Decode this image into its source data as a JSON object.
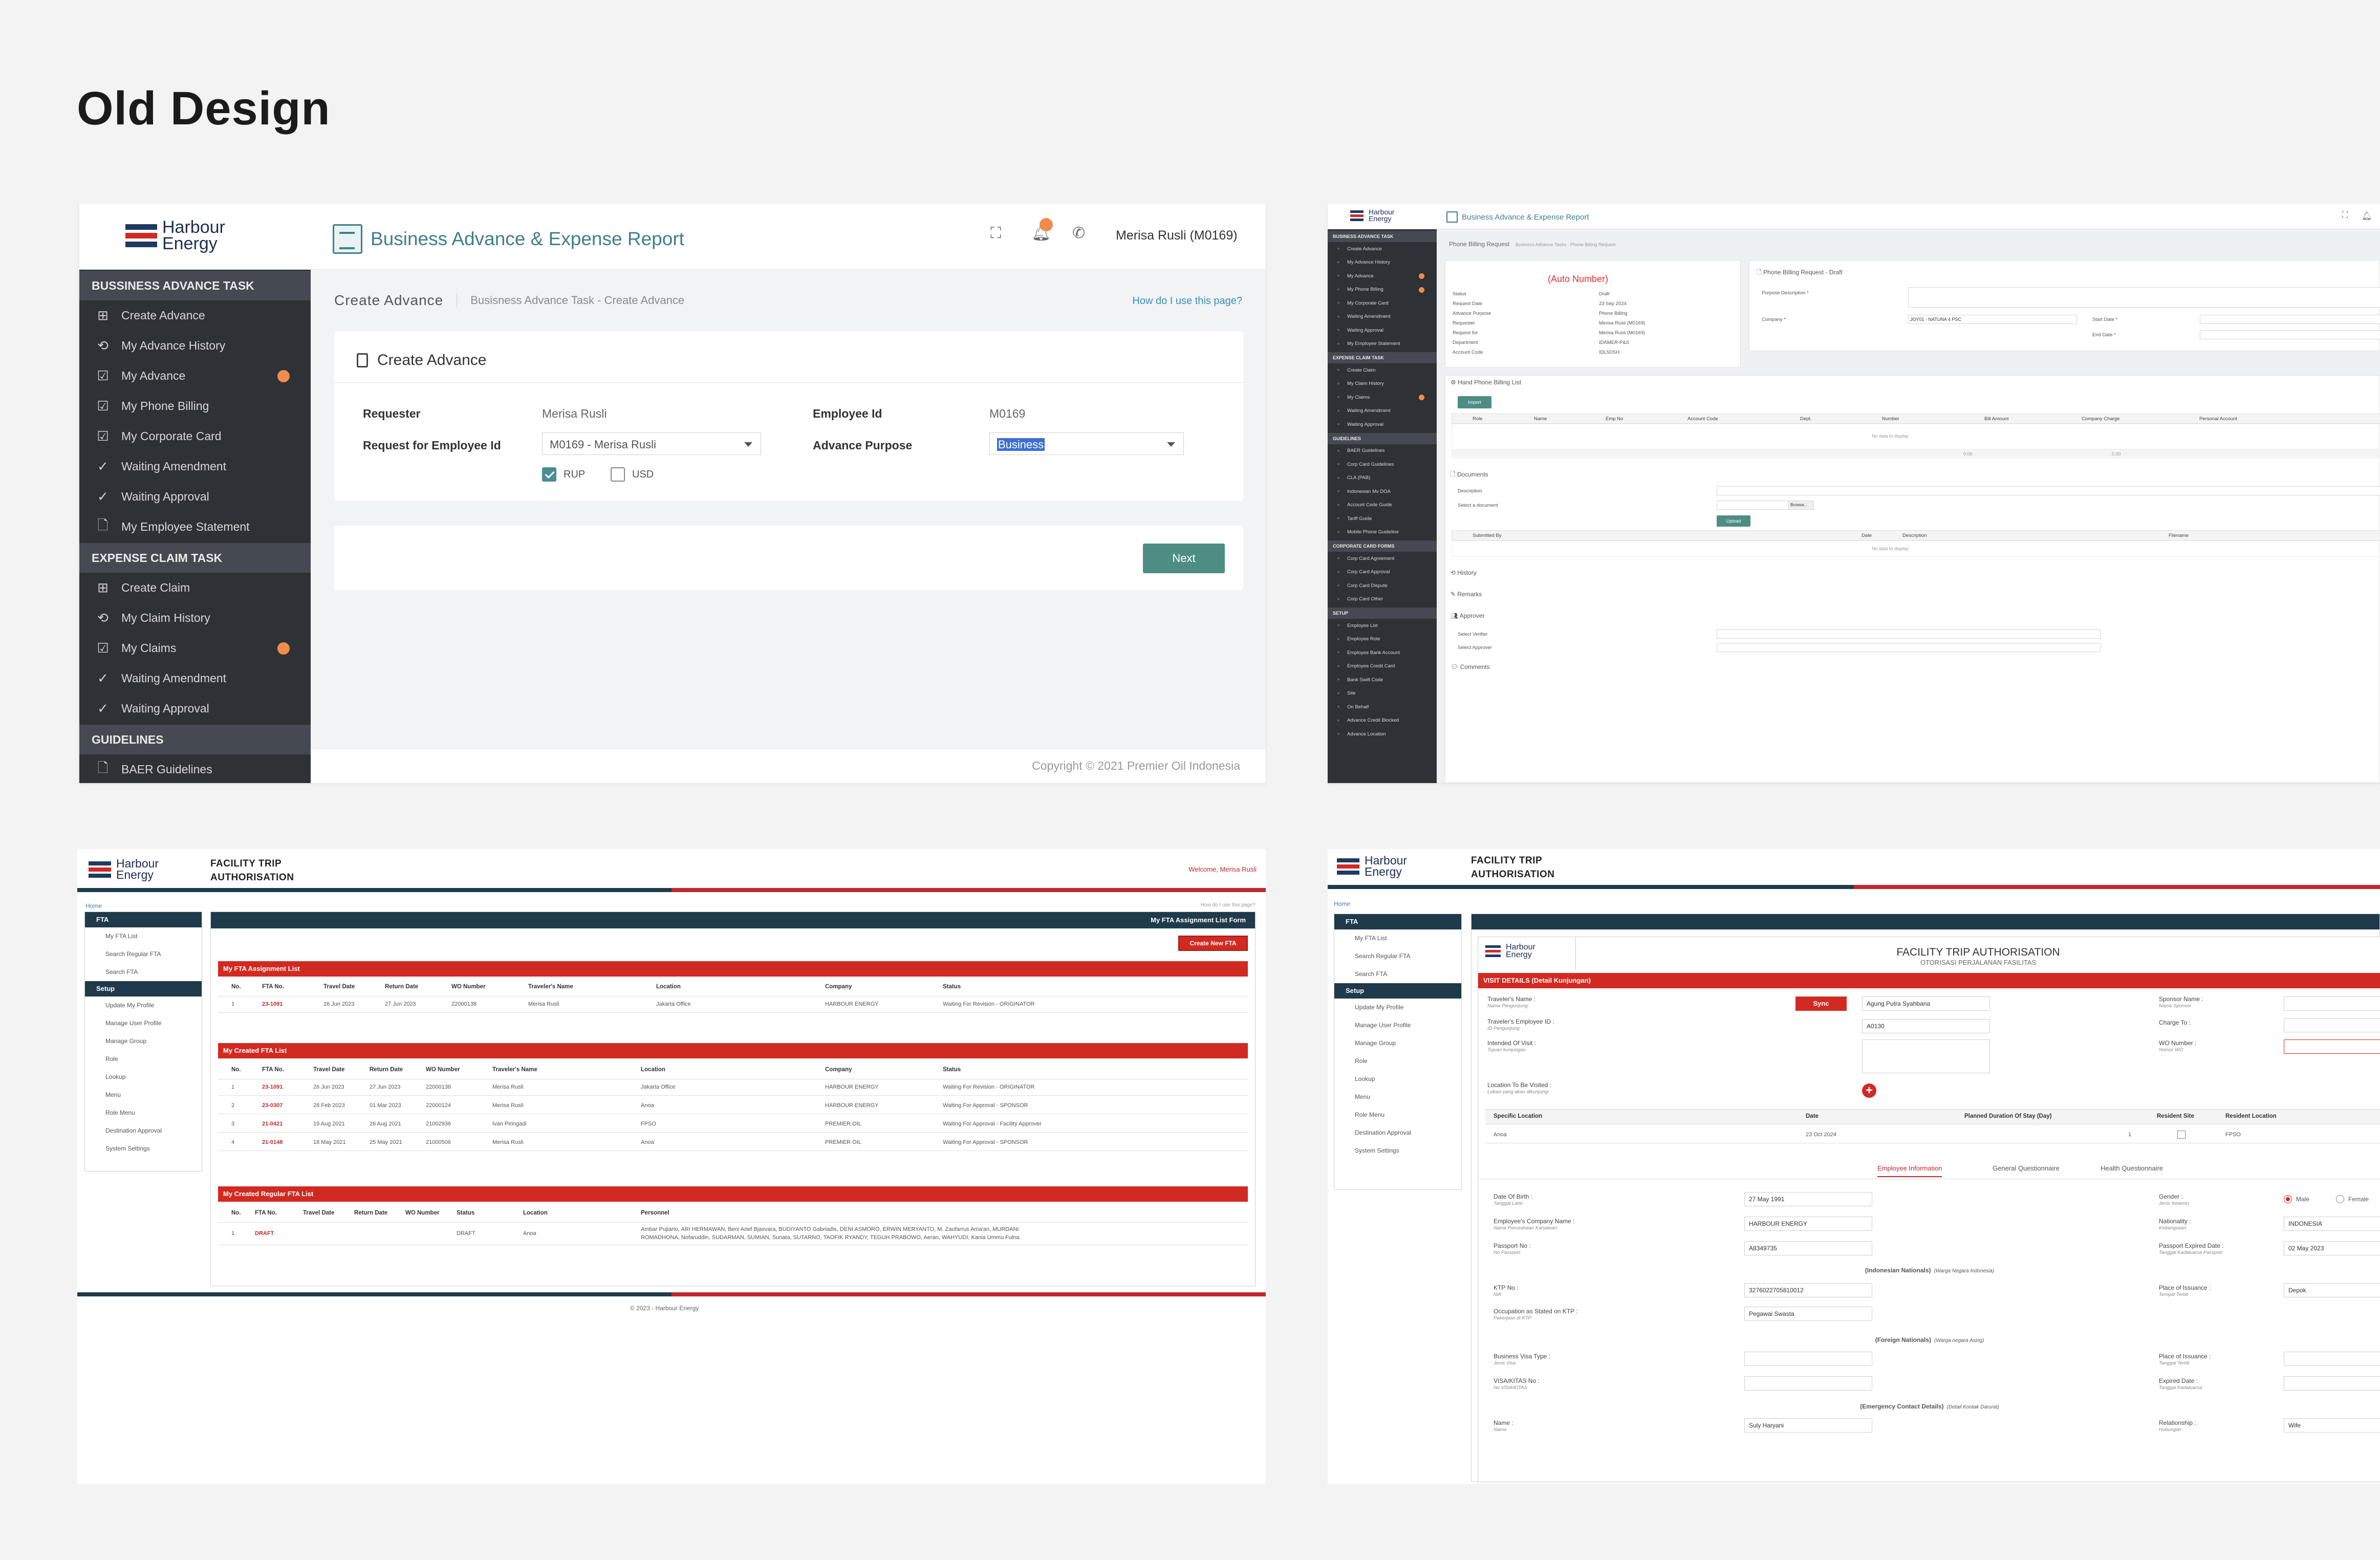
{
  "page_title": "Old Design",
  "s1": {
    "logo": [
      "Harbour",
      "Energy"
    ],
    "app_title": "Business Advance & Expense Report",
    "user": "Merisa Rusli (M0169)",
    "sidebar": [
      {
        "head": "BUSSINESS ADVANCE TASK",
        "items": [
          {
            "label": "Create Advance",
            "icon": "plus-square-icon"
          },
          {
            "label": "My Advance History",
            "icon": "history-icon"
          },
          {
            "label": "My Advance",
            "icon": "check-square-icon",
            "dot": true
          },
          {
            "label": "My Phone Billing",
            "icon": "check-square-icon"
          },
          {
            "label": "My Corporate Card",
            "icon": "check-square-icon"
          },
          {
            "label": "Waiting Amendment",
            "icon": "check-icon"
          },
          {
            "label": "Waiting Approval",
            "icon": "check-icon"
          },
          {
            "label": "My Employee Statement",
            "icon": "document-icon"
          }
        ]
      },
      {
        "head": "EXPENSE CLAIM TASK",
        "items": [
          {
            "label": "Create Claim",
            "icon": "plus-square-icon"
          },
          {
            "label": "My Claim History",
            "icon": "history-icon"
          },
          {
            "label": "My Claims",
            "icon": "check-square-icon",
            "dot": true
          },
          {
            "label": "Waiting Amendment",
            "icon": "check-icon"
          },
          {
            "label": "Waiting Approval",
            "icon": "check-icon"
          }
        ]
      },
      {
        "head": "GUIDELINES",
        "items": [
          {
            "label": "BAER Guidelines",
            "icon": "document-icon"
          }
        ]
      }
    ],
    "crumb_title": "Create Advance",
    "crumb_path": "Busisness Advance Task  -  Create Advance",
    "help": "How do I use this page?",
    "card_title": "Create Advance",
    "requester_label": "Requester",
    "requester_value": "Merisa Rusli",
    "employee_id_label": "Employee Id",
    "employee_id_value": "M0169",
    "request_for_label": "Request for Employee Id",
    "request_for_value": "M0169 - Merisa Rusli",
    "purpose_label": "Advance Purpose",
    "purpose_value": "Business",
    "currency1": "RUP",
    "currency2": "USD",
    "next": "Next",
    "copyright": "Copyright © 2021 Premier Oil Indonesia"
  },
  "s2": {
    "logo": [
      "Harbour",
      "Energy"
    ],
    "app_title": "Business Advance & Expense Report",
    "crumb": "Phone Billing Request",
    "crumb_path": "Business Advance Tasks  -  Phone Billing Request",
    "sidebar": [
      {
        "head": "BUSINESS ADVANCE TASK",
        "items": [
          "Create Advance",
          "My Advance History",
          "My Advance",
          "My Phone Billing",
          "My Corporate Card",
          "Waiting Amendment",
          "Waiting Approval",
          "My Employee Statement"
        ],
        "dots": [
          2,
          3
        ]
      },
      {
        "head": "EXPENSE CLAIM TASK",
        "items": [
          "Create Claim",
          "My Claim History",
          "My Claims",
          "Waiting Amendment",
          "Waiting Approval"
        ],
        "dots": [
          2
        ]
      },
      {
        "head": "GUIDELINES",
        "items": [
          "BAER Guidelines",
          "Corp Card Guidelines",
          "CLA (PAB)",
          "Indonesian Mv DOA",
          "Account Code Guide",
          "Tariff Guide",
          "Mobile Phone Guideline"
        ],
        "dots": []
      },
      {
        "head": "CORPORATE CARD FORMS",
        "items": [
          "Corp Card Agreement",
          "Corp Card Approval",
          "Corp Card Dispute",
          "Corp Card Other"
        ],
        "dots": []
      },
      {
        "head": "SETUP",
        "items": [
          "Employee List",
          "Employee Role",
          "Employee Bank Account",
          "Employee Credit Card",
          "Bank Swift Code",
          "Site",
          "On Behalf",
          "Advance Credit Blocked",
          "Advance Location"
        ],
        "dots": []
      }
    ],
    "auto_number": "(Auto Number)",
    "info": [
      [
        "Status",
        "Draft"
      ],
      [
        "Request Date",
        "23 Sep 2024"
      ],
      [
        "Advance Purpose",
        "Phone Billing"
      ],
      [
        "Requester",
        "Merisa Rusli (M0169)"
      ],
      [
        "Request for",
        "Merisa Rusli (M0169)"
      ],
      [
        "Department",
        "IDAMER-P&S"
      ],
      [
        "Account Code",
        "IDL5DSH"
      ]
    ],
    "form_title": "Phone Billing Request - Draft",
    "purpose_desc": "Purpose Description *",
    "company": "Company *",
    "company_value": "JOY01 - NATUNA 4 PSC",
    "start_date": "Start Date *",
    "end_date": "End Date *",
    "billing_list": "Hand Phone Billing List",
    "import": "Import",
    "billing_cols": [
      "Role",
      "Name",
      "Emp No",
      "Account Code",
      "Dept.",
      "Number",
      "Bill Amount",
      "Company Charge",
      "Personal Account"
    ],
    "no_data": "No data to display",
    "documents": "Documents",
    "description": "Description",
    "select_doc": "Select a document",
    "browse": "Browse...",
    "upload": "Upload",
    "doc_cols": [
      "Submitted By",
      "Date",
      "Description",
      "Filename"
    ],
    "history": "History",
    "remarks": "Remarks",
    "approver": "Approver",
    "verifier": "Select Verifier",
    "select_approver": "Select Approver",
    "comments": "Comments",
    "zero1": "0.00",
    "zero2": "0.00"
  },
  "s3": {
    "logo": [
      "Harbour",
      "Energy"
    ],
    "title": [
      "FACILITY TRIP",
      "AUTHORISATION"
    ],
    "welcome": "Welcome, Merisa Rusli",
    "home": "Home",
    "help": "How do I use this page?",
    "side": [
      {
        "head": "FTA",
        "items": [
          "My FTA List",
          "Search Regular FTA",
          "Search FTA"
        ]
      },
      {
        "head": "Setup",
        "items": [
          "Update My Profile",
          "Manage User Profile",
          "Manage Group",
          "Role",
          "Lookup",
          "Menu",
          "Role Menu",
          "Destination Approval",
          "System Settings"
        ]
      }
    ],
    "panel_title": "My FTA Assignment List Form",
    "create_btn": "Create New FTA",
    "assign_title": "My FTA Assignment List",
    "assign_cols": [
      "No.",
      "FTA No.",
      "Travel Date",
      "Return Date",
      "WO Number",
      "Traveler's Name",
      "Location",
      "Company",
      "Status"
    ],
    "assign_rows": [
      [
        "1",
        "23-1091",
        "26 Jun 2023",
        "27 Jun 2023",
        "22000138",
        "Merisa Rusli",
        "Jakarta Office",
        "HARBOUR ENERGY",
        "Waiting For Revision - ORIGINATOR"
      ]
    ],
    "created_title": "My Created FTA List",
    "created_cols": [
      "No.",
      "FTA No.",
      "Travel Date",
      "Return Date",
      "WO Number",
      "Traveler's Name",
      "Location",
      "Company",
      "Status"
    ],
    "created_rows": [
      [
        "1",
        "23-1091",
        "26 Jun 2023",
        "27 Jun 2023",
        "22000138",
        "Merisa Rusli",
        "Jakarta Office",
        "HARBOUR ENERGY",
        "Waiting For Revision - ORIGINATOR"
      ],
      [
        "2",
        "23-0307",
        "28 Feb 2023",
        "01 Mar 2023",
        "22000124",
        "Merisa Rusli",
        "Anoa",
        "HARBOUR ENERGY",
        "Waiting For Approval - SPONSOR"
      ],
      [
        "3",
        "21-0421",
        "19 Aug 2021",
        "26 Aug 2021",
        "21002936",
        "Ivan Piringadi",
        "FPSO",
        "PREMIER OIL",
        "Waiting For Approval - Facility Approver"
      ],
      [
        "4",
        "21-0148",
        "18 May 2021",
        "25 May 2021",
        "21000506",
        "Merisa Rusli",
        "Anoa",
        "PREMIER OIL",
        "Waiting For Approval - SPONSOR"
      ]
    ],
    "regular_title": "My Created Regular FTA List",
    "regular_cols": [
      "No.",
      "FTA No.",
      "Travel Date",
      "Return Date",
      "WO Number",
      "Status",
      "Location",
      "Personnel"
    ],
    "regular_rows": [
      [
        "1",
        "DRAFT",
        "",
        "",
        "",
        "DRAFT",
        "Anoa",
        "Ambar Pujiarto, ARI HERMAWAN, Beni Arief Bjasvara, BUDIYANTO Gabriadis, DENI ASMORO, ERWIN MERYANTO, M. Zaufarrus Ama'an, MURDANI",
        "ROMADHONA, Nofaruddin, SUDARMAN, SUMIAN, Sunata, SUTARNO, TAOFIK RYANDY, TEGUH PRABOWO, Aeran, WAHYUDI, Kania Ummu Fulna"
      ]
    ],
    "copyright": "© 2023 - Harbour Energy"
  },
  "s4": {
    "logo": [
      "Harbour",
      "Energy"
    ],
    "title": [
      "FACILITY TRIP",
      "AUTHORISATION"
    ],
    "home": "Home",
    "side": [
      {
        "head": "FTA",
        "items": [
          "My FTA List",
          "Search Regular FTA",
          "Search FTA"
        ]
      },
      {
        "head": "Setup",
        "items": [
          "Update My Profile",
          "Manage User Profile",
          "Manage Group",
          "Role",
          "Lookup",
          "Menu",
          "Role Menu",
          "Destination Approval",
          "System Settings"
        ]
      }
    ],
    "form_title": "FACILITY TRIP AUTHORISATION",
    "form_sub": "OTORISASI PERJALANAN FASILITAS",
    "visit_details": "VISIT DETAILS (Detail Kunjungan)",
    "travelers_name": "Traveler's Name :",
    "travelers_name_sub": "Nama Pengunjung",
    "sync": "Sync",
    "travelers_name_value": "Agung Putra Syahbana",
    "emp_id": "Traveler's Employee ID :",
    "emp_id_sub": "ID Pengunjung",
    "emp_id_value": "A0130",
    "intended": "Intended Of Visit :",
    "intended_sub": "Tujuan kunjungan",
    "location": "Location To Be Visited :",
    "location_sub": "Lokasi yang akan dikunjungi",
    "sponsor": "Sponsor Name :",
    "sponsor_sub": "Nama Sponsor",
    "charge": "Charge To :",
    "wo": "WO Number :",
    "wo_sub": "Nomor WO",
    "loc_cols": [
      "Specific Location",
      "Date",
      "Planned Duration Of Stay (Day)",
      "Resident Site",
      "Resident Location"
    ],
    "loc_row": [
      "Anoa",
      "23 Oct 2024",
      "1",
      "",
      "FPSO"
    ],
    "tabs": [
      "Employee Information",
      "General Questionnaire",
      "Health Questionnaire"
    ],
    "dob": "Date Of Birth :",
    "dob_sub": "Tanggal Lahir",
    "dob_value": "27 May 1991",
    "company_name": "Employee's Company Name :",
    "company_name_sub": "Nama Perusahaan Karyawan",
    "company_value": "HARBOUR ENERGY",
    "passport": "Passport No :",
    "passport_sub": "No Passport",
    "passport_value": "A8349735",
    "gender": "Gender :",
    "gender_sub": "Jenis Kelamin",
    "male": "Male",
    "female": "Female",
    "nationality": "Nationality :",
    "nationality_sub": "Kebangsaan",
    "nationality_value": "INDONESIA",
    "passport_exp": "Passport Expired Date :",
    "passport_exp_sub": "Tanggal Kadaluarsa Passport",
    "passport_exp_value": "02 May 2023",
    "indo_nat": "(Indonesian Nationals)",
    "indo_nat_sub": "(Warga Negara Indonesia)",
    "ktp": "KTP No :",
    "ktp_sub": "NIK",
    "ktp_value": "3276022705810012",
    "place_issue": "Place of Issuance :",
    "place_issue_sub": "Tempat Terbit",
    "place_issue_value": "Depok",
    "occupation": "Occupation as Stated on KTP :",
    "occupation_sub": "Pekerjaan di KTP",
    "occupation_value": "Pegawai Swasta",
    "foreign_nat": "(Foreign Nationals)",
    "foreign_nat_sub": "(Warga negara Asing)",
    "visa_type": "Business Visa Type :",
    "visa_type_sub": "Jenis Visa",
    "place_issue2": "Place of Issuance :",
    "place_issue2_sub": "Tanggal Terbit",
    "visa_no": "VISA/KITAS No :",
    "visa_no_sub": "No VISA/KITAS",
    "expired": "Expired Date :",
    "expired_sub": "Tanggal Kadaluarsa",
    "emergency": "(Emergency Contact Details)",
    "emergency_sub": "(Detail Kontak Darurat)",
    "name": "Name :",
    "name_sub": "Nama",
    "name_value": "Suly Haryani",
    "relationship": "Relationship :",
    "relationship_sub": "Hubungan",
    "relationship_value": "Wife"
  }
}
